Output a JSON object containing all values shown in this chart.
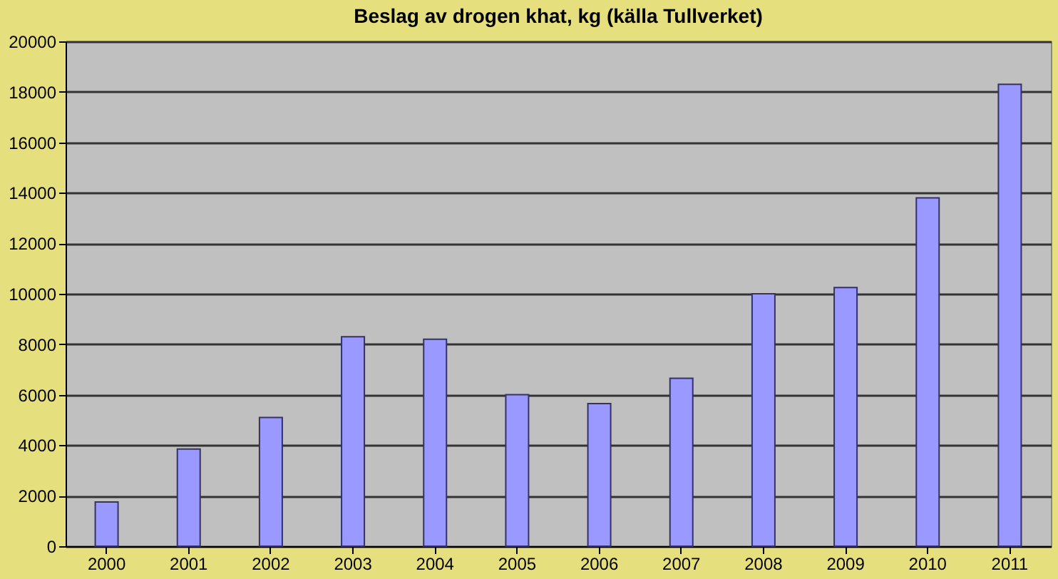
{
  "chart_data": {
    "type": "bar",
    "title": "Beslag av drogen khat, kg  (källa Tullverket)",
    "categories": [
      "2000",
      "2001",
      "2002",
      "2003",
      "2004",
      "2005",
      "2006",
      "2007",
      "2008",
      "2009",
      "2010",
      "2011"
    ],
    "values": [
      1750,
      3850,
      5100,
      8300,
      8200,
      6000,
      5650,
      6650,
      10000,
      10250,
      13800,
      18300
    ],
    "color": "#9999ff",
    "ylim": [
      0,
      20000
    ],
    "yticks": [
      0,
      2000,
      4000,
      6000,
      8000,
      10000,
      12000,
      14000,
      16000,
      18000,
      20000
    ],
    "grid": "y"
  }
}
